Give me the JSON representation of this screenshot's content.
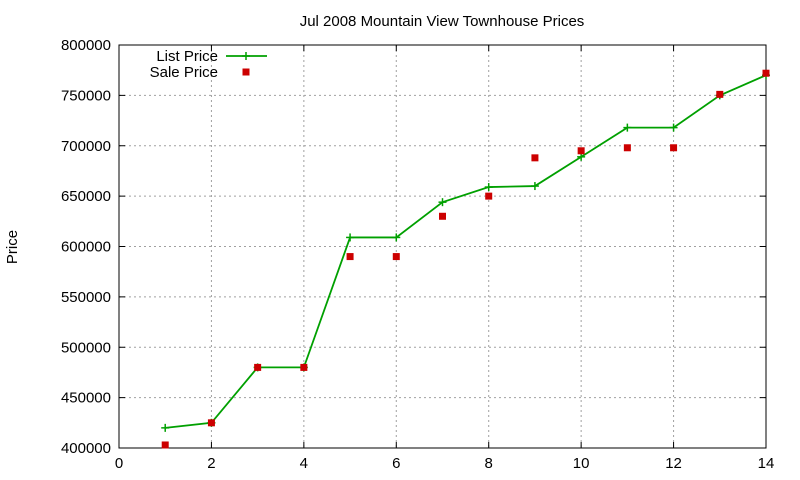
{
  "chart_data": {
    "type": "line",
    "title": "Jul 2008 Mountain View Townhouse Prices",
    "xlabel": "",
    "ylabel": "Price",
    "xlim": [
      0,
      14
    ],
    "ylim": [
      400000,
      800000
    ],
    "xticks": [
      0,
      2,
      4,
      6,
      8,
      10,
      12,
      14
    ],
    "yticks": [
      400000,
      450000,
      500000,
      550000,
      600000,
      650000,
      700000,
      750000,
      800000
    ],
    "grid": true,
    "legend_position": "top-left",
    "series": [
      {
        "name": "List Price",
        "kind": "line",
        "marker": "plus",
        "color": "#00a000",
        "x": [
          1,
          2,
          3,
          4,
          5,
          6,
          7,
          8,
          9,
          10,
          11,
          12,
          13,
          14
        ],
        "y": [
          420000,
          425000,
          480000,
          480000,
          609000,
          609000,
          644000,
          659000,
          660000,
          689000,
          718000,
          718000,
          750000,
          770000
        ]
      },
      {
        "name": "Sale Price",
        "kind": "scatter",
        "marker": "square",
        "color": "#cc0000",
        "x": [
          1,
          2,
          3,
          4,
          5,
          6,
          7,
          8,
          9,
          10,
          11,
          12,
          13,
          14
        ],
        "y": [
          403000,
          425000,
          480000,
          480000,
          590000,
          590000,
          630000,
          650000,
          688000,
          695000,
          698000,
          698000,
          751000,
          772000
        ]
      }
    ]
  }
}
